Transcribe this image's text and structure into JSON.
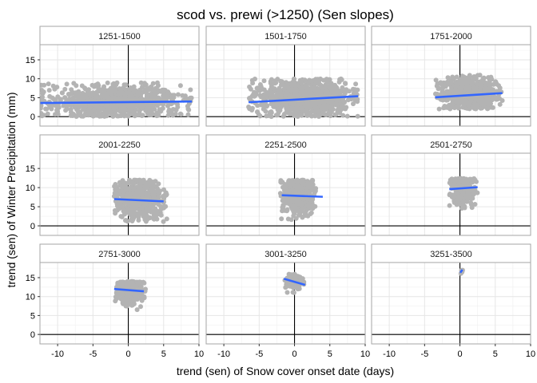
{
  "chart_data": {
    "type": "scatter",
    "title": "scod vs. prewi (>1250) (Sen slopes)",
    "xlabel": "trend (sen) of Snow cover onset date (days)",
    "ylabel": "trend (sen) of Winter Precipitation (mm)",
    "xlim": [
      -12.5,
      10
    ],
    "x_ticks": [
      -10,
      -5,
      0,
      5,
      10
    ],
    "x_tick_labels": [
      "-10",
      "-5",
      "0",
      "5",
      "10"
    ],
    "grid": true,
    "reference_lines": {
      "x": 0,
      "y": 0
    },
    "point_color": "#b3b3b3",
    "fit_line_color": "#3366ff",
    "panel_border_color": "#a6a6a6",
    "strip_fill": "#ffffff",
    "facet_rows": [
      {
        "ylim": [
          -2.5,
          19
        ],
        "y_ticks": [
          0,
          5,
          10,
          15
        ],
        "y_tick_labels": [
          "0",
          "5",
          "10",
          "15"
        ],
        "panels": [
          {
            "label": "1251-1500",
            "x_range": [
              -12.5,
              9
            ],
            "y_range": [
              0,
              9
            ],
            "y_center": 3.8,
            "n_points": 900,
            "fit": {
              "x": [
                -12.5,
                9
              ],
              "y": [
                3.6,
                4.0
              ]
            }
          },
          {
            "label": "1501-1750",
            "x_range": [
              -6.5,
              9
            ],
            "y_range": [
              0,
              10
            ],
            "y_center": 4.8,
            "n_points": 900,
            "fit": {
              "x": [
                -6.5,
                9
              ],
              "y": [
                3.8,
                5.4
              ]
            }
          },
          {
            "label": "1751-2000",
            "x_range": [
              -3.5,
              6
            ],
            "y_range": [
              2,
              11
            ],
            "y_center": 6.0,
            "n_points": 700,
            "fit": {
              "x": [
                -3.5,
                6
              ],
              "y": [
                5.1,
                6.2
              ]
            }
          }
        ]
      },
      {
        "ylim": [
          -2.5,
          19
        ],
        "y_ticks": [
          0,
          5,
          10,
          15
        ],
        "y_tick_labels": [
          "0",
          "5",
          "10",
          "15"
        ],
        "panels": [
          {
            "label": "2001-2250",
            "x_range": [
              -2,
              5.5
            ],
            "y_range": [
              1,
              12
            ],
            "y_center": 7.0,
            "n_points": 600,
            "fit": {
              "x": [
                -2,
                5
              ],
              "y": [
                7.0,
                6.4
              ]
            }
          },
          {
            "label": "2251-2500",
            "x_range": [
              -2,
              3
            ],
            "y_range": [
              1.5,
              12
            ],
            "y_center": 8.0,
            "n_points": 500,
            "fit": {
              "x": [
                -1.8,
                4
              ],
              "y": [
                8.0,
                7.6
              ]
            }
          },
          {
            "label": "2501-2750",
            "x_range": [
              -1.5,
              2.5
            ],
            "y_range": [
              4,
              12.5
            ],
            "y_center": 9.5,
            "n_points": 300,
            "fit": {
              "x": [
                -1.5,
                2.5
              ],
              "y": [
                9.6,
                10.1
              ]
            }
          }
        ]
      },
      {
        "ylim": [
          -2.5,
          19
        ],
        "y_ticks": [
          0,
          5,
          10,
          15
        ],
        "y_tick_labels": [
          "0",
          "5",
          "10",
          "15"
        ],
        "panels": [
          {
            "label": "2751-3000",
            "x_range": [
              -2,
              2.5
            ],
            "y_range": [
              6,
              14
            ],
            "y_center": 11.5,
            "n_points": 250,
            "fit": {
              "x": [
                -2,
                2.2
              ],
              "y": [
                12.0,
                11.4
              ]
            }
          },
          {
            "label": "3001-3250",
            "x_range": [
              -1.5,
              1.5
            ],
            "y_range": [
              11,
              16
            ],
            "y_center": 14.0,
            "n_points": 90,
            "fit": {
              "x": [
                -1.5,
                1.5
              ],
              "y": [
                14.7,
                13.1
              ]
            }
          },
          {
            "label": "3251-3500",
            "x_range": [
              0,
              0.5
            ],
            "y_range": [
              15.5,
              17.5
            ],
            "y_center": 16.5,
            "n_points": 6,
            "fit": {
              "x": [
                0.05,
                0.35
              ],
              "y": [
                16.3,
                17.1
              ]
            }
          }
        ]
      }
    ]
  }
}
